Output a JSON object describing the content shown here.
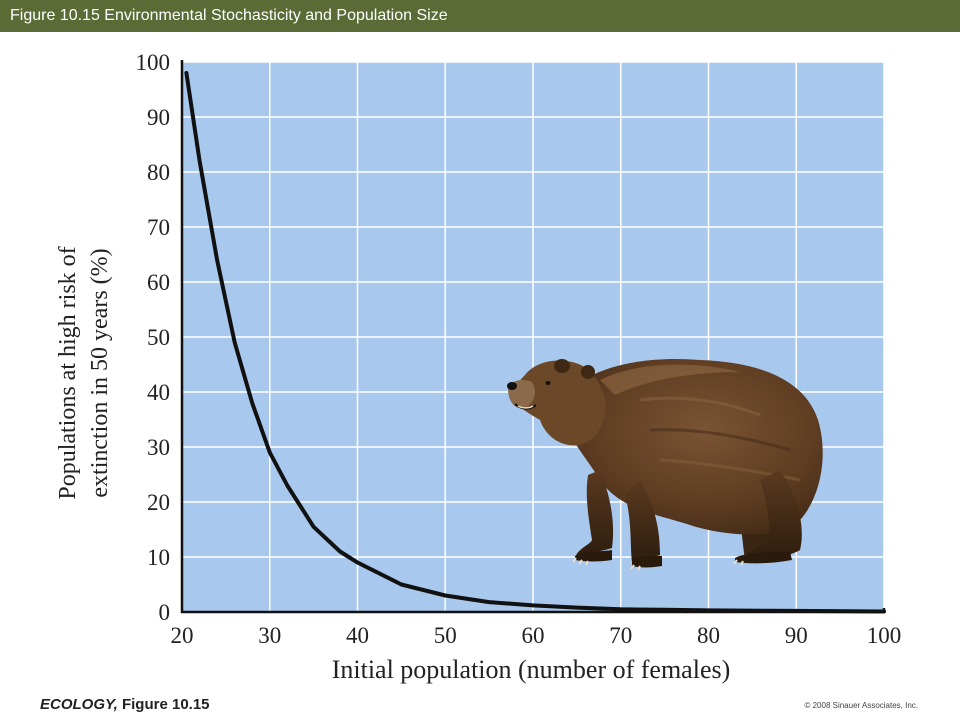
{
  "header": {
    "title": "Figure 10.15  Environmental Stochasticity and Population Size"
  },
  "footer": {
    "book_title": "ECOLOGY,",
    "figure_label": " Figure 10.15",
    "copyright": "© 2008 Sinauer Associates, Inc."
  },
  "colors": {
    "header_bg": "#5a6b35",
    "plot_bg": "#a9c8ee",
    "grid": "#ffffff",
    "curve": "#111111"
  },
  "chart_data": {
    "type": "line",
    "title": "",
    "xlabel": "Initial population (number of females)",
    "ylabel_line1": "Populations at high risk of",
    "ylabel_line2": "extinction in 50 years (%)",
    "xlim": [
      20,
      100
    ],
    "ylim": [
      0,
      100
    ],
    "xticks": [
      20,
      30,
      40,
      50,
      60,
      70,
      80,
      90,
      100
    ],
    "yticks": [
      0,
      10,
      20,
      30,
      40,
      50,
      60,
      70,
      80,
      90,
      100
    ],
    "grid": true,
    "series": [
      {
        "x": [
          20.5,
          22,
          24,
          26,
          28,
          30,
          32,
          35,
          38,
          40,
          45,
          50,
          55,
          60,
          65,
          70,
          75,
          80,
          90,
          100
        ],
        "y": [
          98,
          82,
          64,
          49,
          38,
          29,
          23,
          15.5,
          11,
          9,
          5,
          3,
          1.8,
          1.2,
          0.8,
          0.5,
          0.4,
          0.3,
          0.2,
          0.1
        ]
      }
    ],
    "illustration": "grizzly-bear"
  }
}
